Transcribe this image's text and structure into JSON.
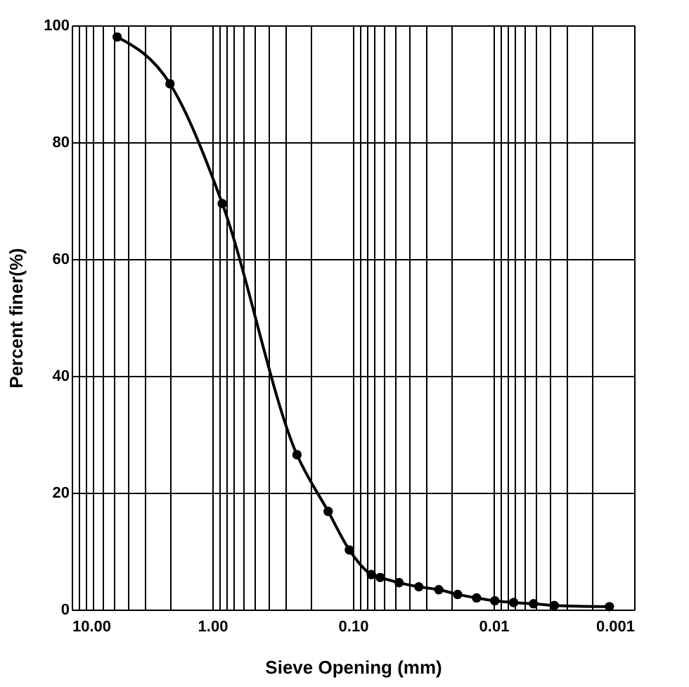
{
  "chart_data": {
    "type": "line",
    "xlabel": "Sieve Opening (mm)",
    "ylabel": "Percent finer(%)",
    "x": [
      4.75,
      2.0,
      0.85,
      0.25,
      0.15,
      0.106,
      0.074,
      0.064,
      0.047,
      0.034,
      0.0245,
      0.018,
      0.0132,
      0.0098,
      0.0072,
      0.0052,
      0.0037,
      0.0015
    ],
    "series": [
      {
        "color": "#000000",
        "values": [
          98,
          90,
          69.5,
          26.5,
          16.8,
          10.2,
          6,
          5.5,
          4.6,
          3.9,
          3.4,
          2.6,
          2.0,
          1.5,
          1.2,
          1.0,
          0.7,
          0.5
        ]
      }
    ],
    "log": "x",
    "marker": "circle",
    "line_style": "solid",
    "grid": true,
    "xlim": [
      10,
      0.001
    ],
    "ylim": [
      0,
      100
    ],
    "yticks": [
      0,
      20,
      40,
      60,
      80,
      100
    ],
    "xticks": [
      {
        "value": 10,
        "label": "10.00"
      },
      {
        "value": 9,
        "label": null
      },
      {
        "value": 8,
        "label": null
      },
      {
        "value": 7,
        "label": null
      },
      {
        "value": 6,
        "label": null
      },
      {
        "value": 5,
        "label": null
      },
      {
        "value": 4,
        "label": null
      },
      {
        "value": 3,
        "label": null
      },
      {
        "value": 2,
        "label": null
      },
      {
        "value": 1,
        "label": "1.00"
      },
      {
        "value": 0.9,
        "label": null
      },
      {
        "value": 0.8,
        "label": null
      },
      {
        "value": 0.7,
        "label": null
      },
      {
        "value": 0.6,
        "label": null
      },
      {
        "value": 0.5,
        "label": null
      },
      {
        "value": 0.4,
        "label": null
      },
      {
        "value": 0.3,
        "label": null
      },
      {
        "value": 0.2,
        "label": null
      },
      {
        "value": 0.1,
        "label": "0.10"
      },
      {
        "value": 0.09,
        "label": null
      },
      {
        "value": 0.08,
        "label": null
      },
      {
        "value": 0.07,
        "label": null
      },
      {
        "value": 0.06,
        "label": null
      },
      {
        "value": 0.05,
        "label": null
      },
      {
        "value": 0.04,
        "label": null
      },
      {
        "value": 0.03,
        "label": null
      },
      {
        "value": 0.02,
        "label": null
      },
      {
        "value": 0.01,
        "label": "0.01"
      },
      {
        "value": 0.009,
        "label": null
      },
      {
        "value": 0.008,
        "label": null
      },
      {
        "value": 0.007,
        "label": null
      },
      {
        "value": 0.006,
        "label": null
      },
      {
        "value": 0.005,
        "label": null
      },
      {
        "value": 0.004,
        "label": null
      },
      {
        "value": 0.003,
        "label": null
      },
      {
        "value": 0.002,
        "label": null
      },
      {
        "value": 0.001,
        "label": "0.001"
      }
    ]
  }
}
